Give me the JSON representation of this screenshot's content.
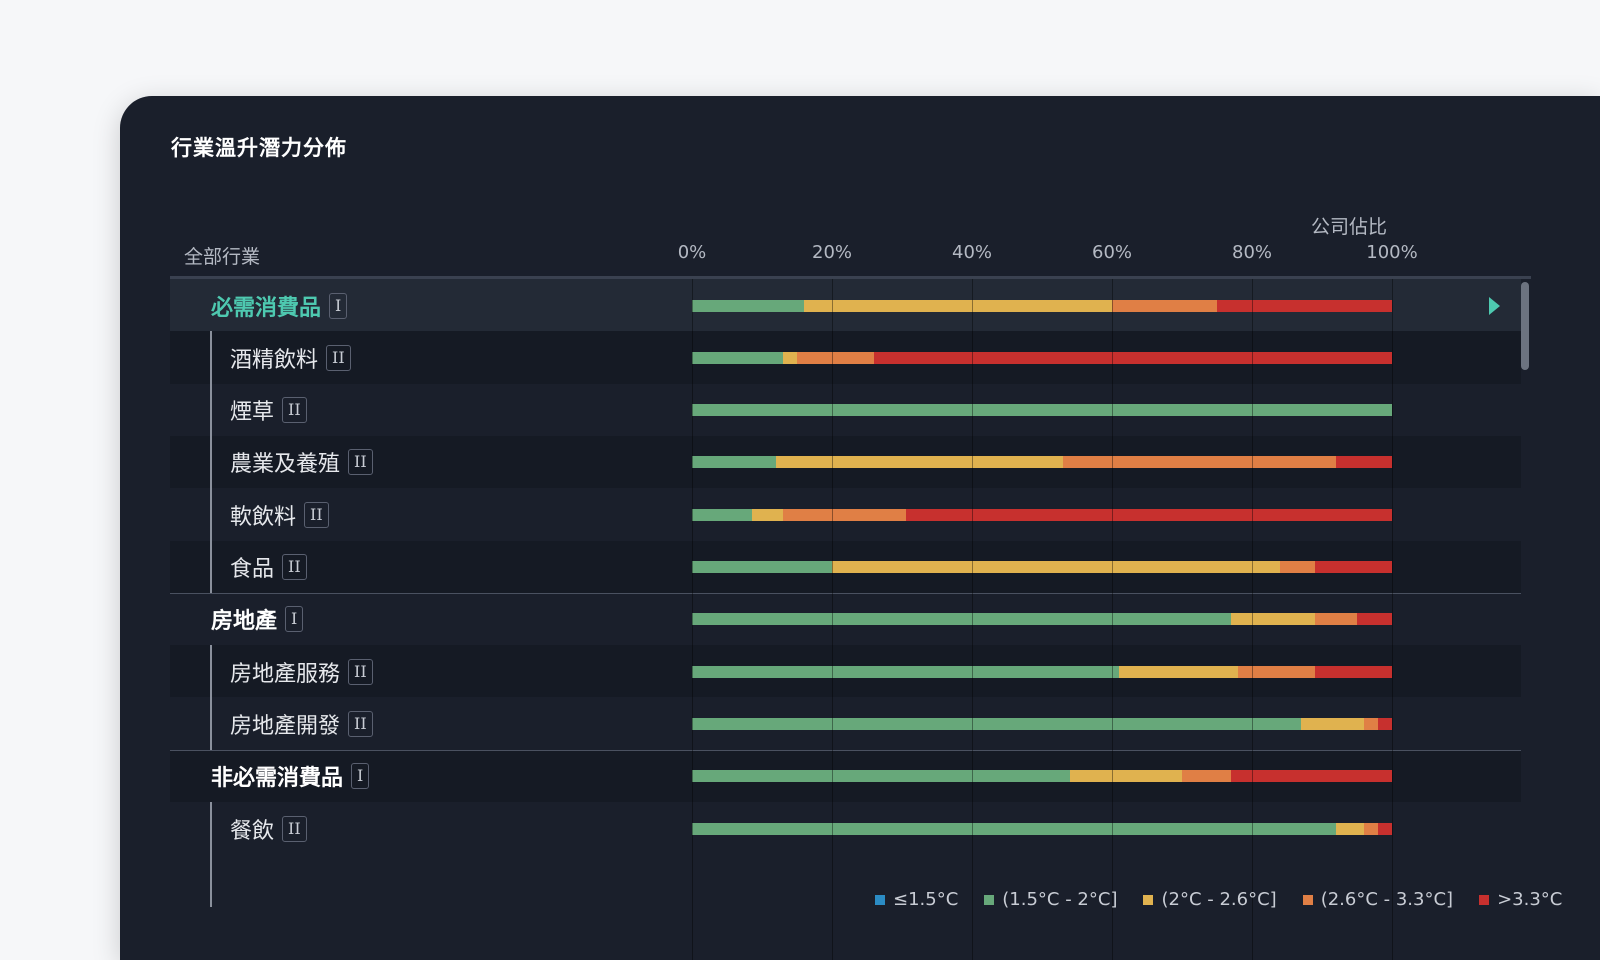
{
  "title": "行業溫升潛力分佈",
  "industry_header": "全部行業",
  "unit_label": "公司佔比",
  "colors": {
    "le_1_5": "#2b8cc4",
    "1_5_2": "#67a87a",
    "2_2_6": "#e0b24f",
    "2_6_3_3": "#e07f45",
    "gt_3_3": "#c7302e",
    "accent": "#4ec9b0"
  },
  "legend": [
    {
      "label": "≤1.5°C",
      "color": "#2b8cc4"
    },
    {
      "label": "(1.5°C - 2°C]",
      "color": "#67a87a"
    },
    {
      "label": "(2°C - 2.6°C]",
      "color": "#e0b24f"
    },
    {
      "label": "(2.6°C - 3.3°C]",
      "color": "#e07f45"
    },
    {
      "label": ">3.3°C",
      "color": "#c7302e"
    }
  ],
  "rows": [
    {
      "name": "必需消費品",
      "level": 1,
      "badge": "I",
      "selected": true,
      "icon": "play-triangle-icon"
    },
    {
      "name": "酒精飲料",
      "level": 2,
      "badge": "II"
    },
    {
      "name": "煙草",
      "level": 2,
      "badge": "II"
    },
    {
      "name": "農業及養殖",
      "level": 2,
      "badge": "II"
    },
    {
      "name": "軟飲料",
      "level": 2,
      "badge": "II"
    },
    {
      "name": "食品",
      "level": 2,
      "badge": "II"
    },
    {
      "name": "房地產",
      "level": 1,
      "badge": "I"
    },
    {
      "name": "房地產服務",
      "level": 2,
      "badge": "II"
    },
    {
      "name": "房地產開發",
      "level": 2,
      "badge": "II"
    },
    {
      "name": "非必需消費品",
      "level": 1,
      "badge": "I"
    },
    {
      "name": "餐飲",
      "level": 2,
      "badge": "II"
    }
  ],
  "chart_data": {
    "type": "bar",
    "orientation": "horizontal",
    "stacked": true,
    "xlabel": "公司佔比",
    "xlim": [
      0,
      100
    ],
    "xticks": [
      "0%",
      "20%",
      "40%",
      "60%",
      "80%",
      "100%"
    ],
    "grid": true,
    "categories": [
      "必需消費品",
      "酒精飲料",
      "煙草",
      "農業及養殖",
      "軟飲料",
      "食品",
      "房地產",
      "房地產服務",
      "房地產開發",
      "非必需消費品",
      "餐飲"
    ],
    "series": [
      {
        "name": "≤1.5°C",
        "values": [
          0,
          0,
          0,
          0,
          0,
          0,
          0,
          0,
          0,
          0,
          0
        ]
      },
      {
        "name": "(1.5°C - 2°C]",
        "values": [
          16,
          13,
          100,
          12,
          8.5,
          20,
          77,
          61,
          87,
          54,
          92
        ]
      },
      {
        "name": "(2°C - 2.6°C]",
        "values": [
          44,
          2,
          0,
          41,
          4.5,
          64,
          12,
          17,
          9,
          16,
          4
        ]
      },
      {
        "name": "(2.6°C - 3.3°C]",
        "values": [
          15,
          11,
          0,
          39,
          17.5,
          5,
          6,
          11,
          2,
          7,
          2
        ]
      },
      {
        "name": ">3.3°C",
        "values": [
          25,
          74,
          0,
          8,
          69.5,
          11,
          5,
          11,
          2,
          23,
          2
        ]
      }
    ],
    "legend_position": "bottom-right"
  }
}
